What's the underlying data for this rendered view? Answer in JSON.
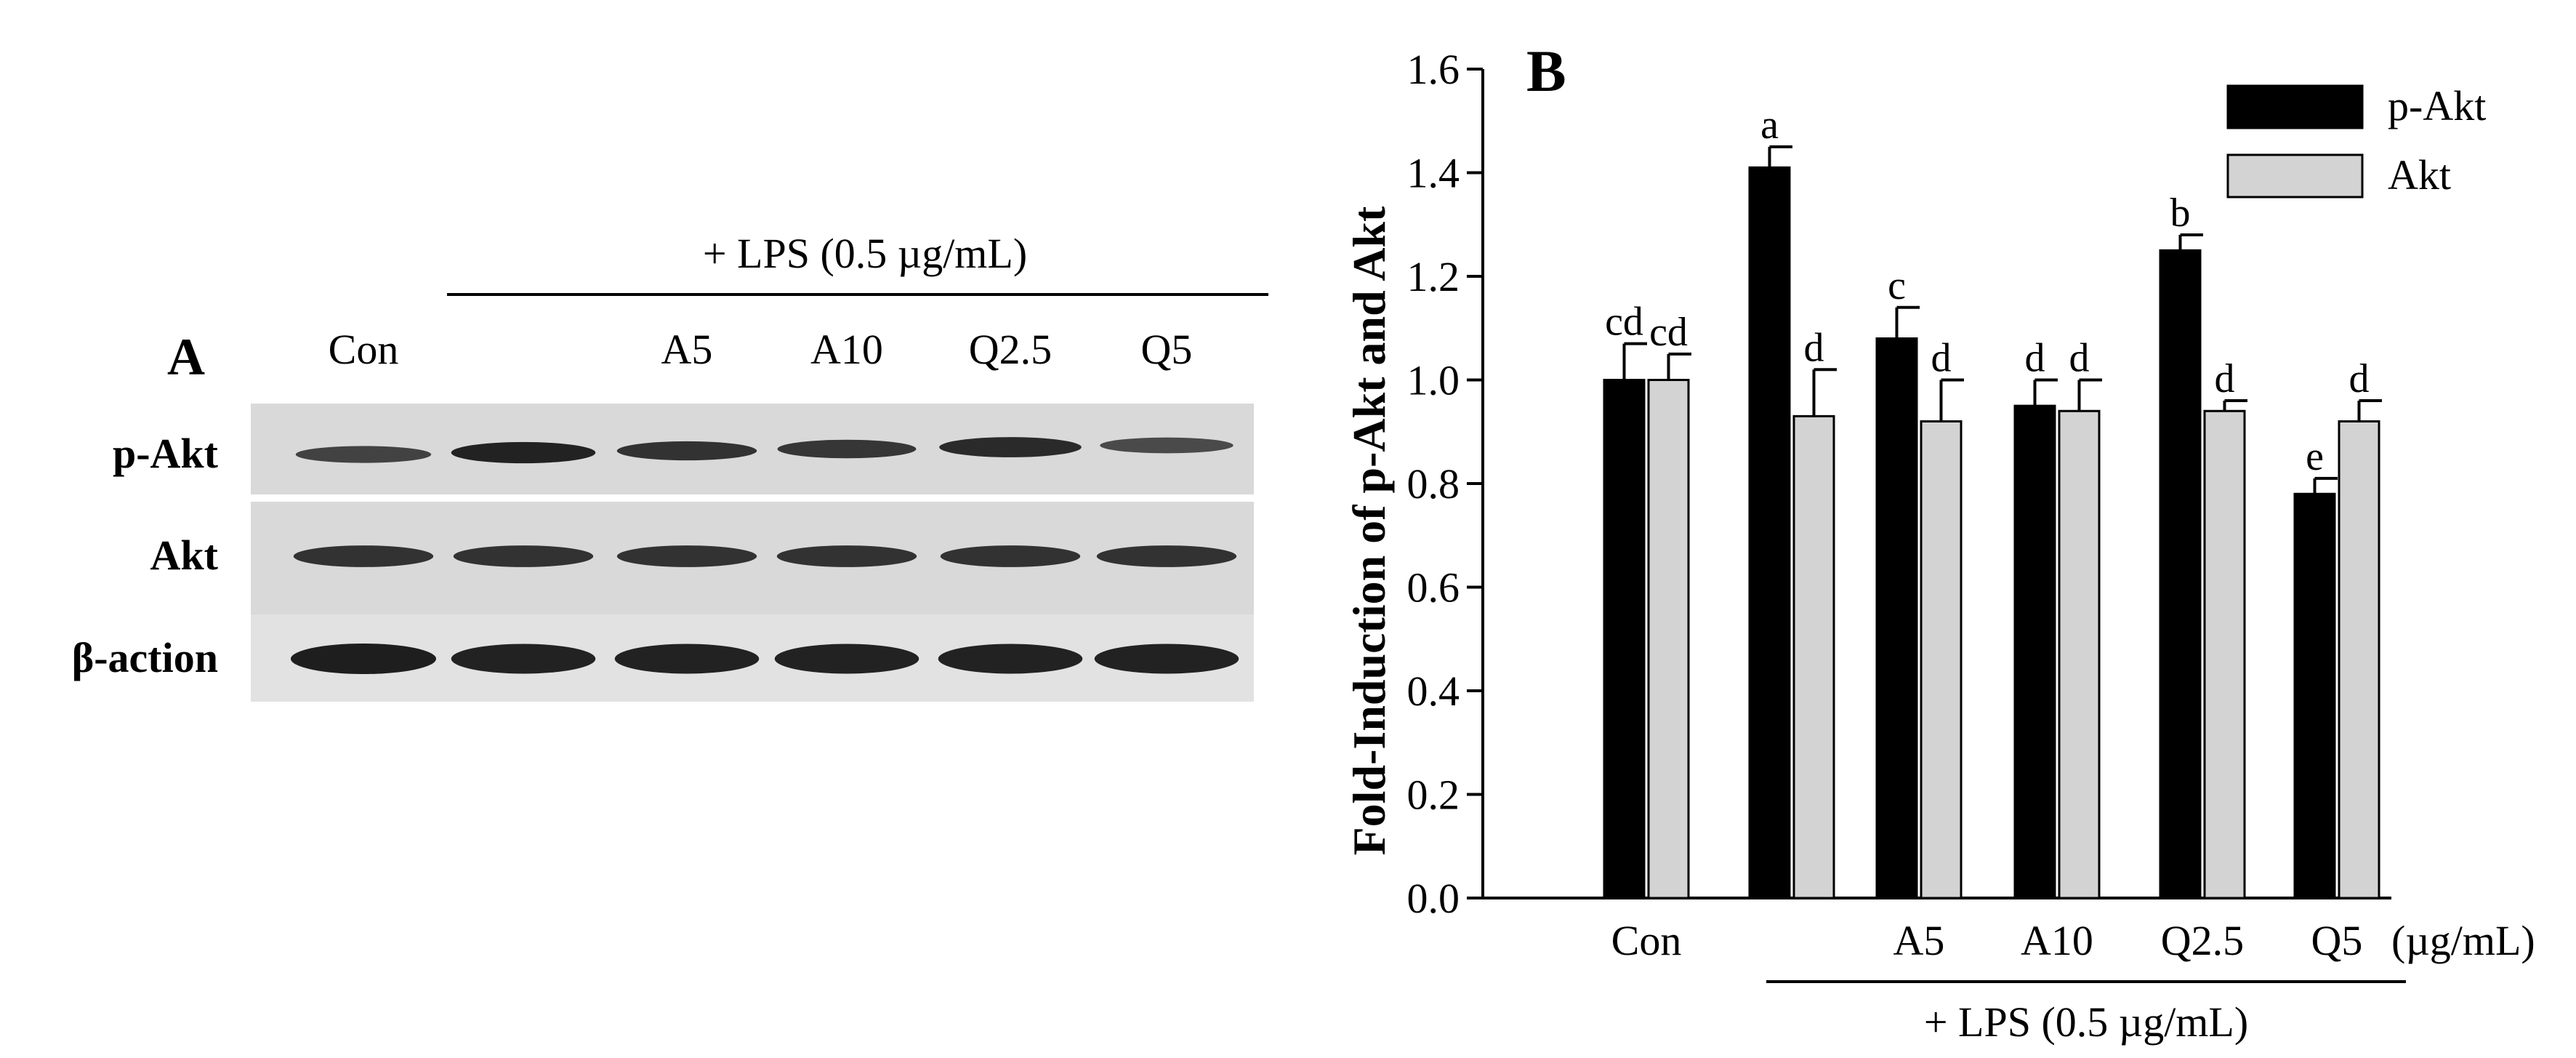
{
  "panel_a": {
    "label": "A",
    "treatment_label": "+ LPS (0.5 µg/mL)",
    "lanes": [
      "Con",
      "",
      "A5",
      "A10",
      "Q2.5",
      "Q5"
    ],
    "rows": [
      "p-Akt",
      "Akt",
      "β-action"
    ],
    "band_intensity": {
      "p-Akt": [
        0.55,
        0.95,
        0.75,
        0.7,
        0.85,
        0.45
      ],
      "Akt": [
        0.75,
        0.75,
        0.75,
        0.75,
        0.75,
        0.75
      ],
      "β-action": [
        1.0,
        0.95,
        0.95,
        0.95,
        0.95,
        0.95
      ]
    }
  },
  "chart_data": {
    "type": "bar",
    "panel_label": "B",
    "categories": [
      "Con",
      "",
      "A5",
      "A10",
      "Q2.5",
      "Q5"
    ],
    "unit_label": "(µg/mL)",
    "treatment_label": "+ LPS (0.5 µg/mL)",
    "ylabel": "Fold-Induction of p-Akt and Akt",
    "ylim": [
      0,
      1.6
    ],
    "yticks": [
      "0.0",
      "0.2",
      "0.4",
      "0.6",
      "0.8",
      "1.0",
      "1.2",
      "1.4",
      "1.6"
    ],
    "legend_position": "top-right",
    "series": [
      {
        "name": "p-Akt",
        "color": "#000000",
        "values": [
          1.0,
          1.41,
          1.08,
          0.95,
          1.25,
          0.78
        ],
        "errors": [
          0.07,
          0.04,
          0.06,
          0.05,
          0.03,
          0.03
        ],
        "letters": [
          "cd",
          "a",
          "c",
          "d",
          "b",
          "e"
        ]
      },
      {
        "name": "Akt",
        "color": "#d3d3d3",
        "values": [
          1.0,
          0.93,
          0.92,
          0.94,
          0.94,
          0.92
        ],
        "errors": [
          0.05,
          0.09,
          0.08,
          0.06,
          0.02,
          0.04
        ],
        "letters": [
          "cd",
          "d",
          "d",
          "d",
          "d",
          "d"
        ]
      }
    ]
  }
}
